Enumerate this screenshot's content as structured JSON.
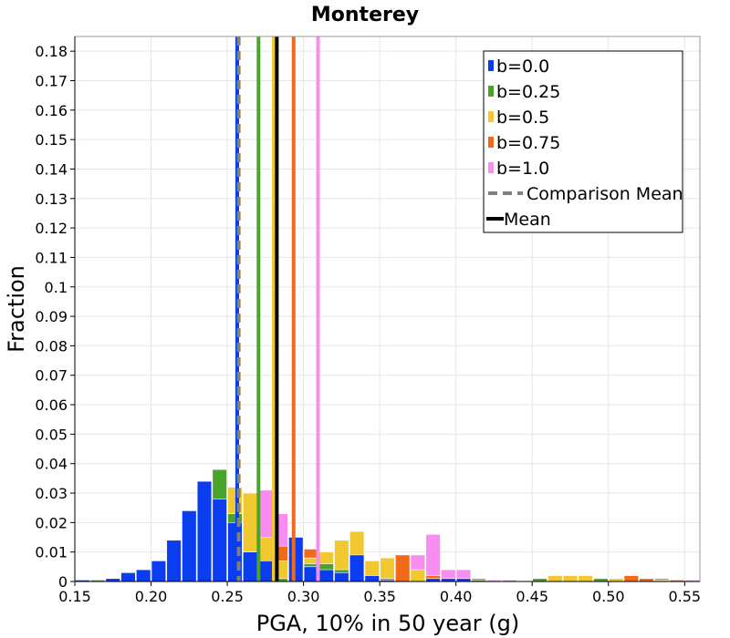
{
  "chart_data": {
    "type": "bar",
    "title": "Monterey",
    "xlabel": "PGA, 10% in 50 year (g)",
    "ylabel": "Fraction",
    "xlim": [
      0.15,
      0.56
    ],
    "ylim": [
      0,
      0.185
    ],
    "xticks": [
      "0.15",
      "0.20",
      "0.25",
      "0.30",
      "0.35",
      "0.40",
      "0.45",
      "0.50",
      "0.55"
    ],
    "yticks": [
      "0",
      "0.01",
      "0.02",
      "0.03",
      "0.04",
      "0.05",
      "0.06",
      "0.07",
      "0.08",
      "0.09",
      "0.1",
      "0.11",
      "0.12",
      "0.13",
      "0.14",
      "0.15",
      "0.16",
      "0.17",
      "0.18"
    ],
    "grid": true,
    "legend_position": "top-right",
    "bin_width": 0.01,
    "bin_starts": [
      0.15,
      0.16,
      0.17,
      0.18,
      0.19,
      0.2,
      0.21,
      0.22,
      0.23,
      0.24,
      0.25,
      0.26,
      0.27,
      0.28,
      0.29,
      0.3,
      0.31,
      0.32,
      0.33,
      0.34,
      0.35,
      0.36,
      0.37,
      0.38,
      0.39,
      0.4,
      0.41,
      0.42,
      0.43,
      0.44,
      0.45,
      0.46,
      0.47,
      0.48,
      0.49,
      0.5,
      0.51,
      0.52,
      0.53,
      0.54,
      0.55
    ],
    "series": [
      {
        "name": "b=0.0",
        "color": "#0a3cf0",
        "values": [
          0.0005,
          0,
          0.001,
          0.003,
          0.004,
          0.007,
          0.014,
          0.024,
          0.034,
          0.028,
          0.02,
          0.01,
          0.007,
          0,
          0.015,
          0.005,
          0.004,
          0.003,
          0.009,
          0.002,
          0.0005,
          0,
          0,
          0.001,
          0.001,
          0.001,
          0,
          0,
          0,
          0,
          0,
          0,
          0,
          0,
          0,
          0,
          0,
          0,
          0,
          0,
          0
        ]
      },
      {
        "name": "b=0.25",
        "color": "#4aa32a",
        "values": [
          0,
          0.0005,
          0.0005,
          0.0005,
          0.001,
          0.003,
          0.008,
          0.018,
          0.021,
          0.038,
          0.023,
          0.005,
          0.004,
          0.001,
          0.003,
          0.006,
          0.006,
          0.004,
          0.003,
          0.001,
          0.001,
          0,
          0,
          0,
          0.0005,
          0.0005,
          0.0005,
          0,
          0,
          0,
          0.001,
          0,
          0,
          0,
          0.001,
          0,
          0,
          0,
          0,
          0,
          0
        ]
      },
      {
        "name": "b=0.5",
        "color": "#f1c830",
        "values": [
          0,
          0,
          0,
          0.0005,
          0.0005,
          0.002,
          0.003,
          0.009,
          0.019,
          0.033,
          0.032,
          0.03,
          0.015,
          0.007,
          0.008,
          0.008,
          0.01,
          0.014,
          0.017,
          0.007,
          0.008,
          0,
          0.004,
          0,
          0,
          0.001,
          0,
          0,
          0,
          0,
          0,
          0.002,
          0.002,
          0.002,
          0,
          0.001,
          0,
          0,
          0.0005,
          0,
          0
        ]
      },
      {
        "name": "b=0.75",
        "color": "#f06a1a",
        "values": [
          0,
          0,
          0,
          0,
          0.0005,
          0.0005,
          0.001,
          0.0005,
          0.01,
          0.013,
          0.022,
          0.016,
          0.012,
          0.012,
          0.006,
          0.011,
          0.005,
          0.012,
          0.005,
          0.007,
          0.008,
          0.009,
          0.003,
          0.002,
          0.001,
          0.0005,
          0.001,
          0,
          0,
          0,
          0,
          0,
          0.001,
          0,
          0.001,
          0,
          0.002,
          0.001,
          0.001,
          0.0005,
          0
        ]
      },
      {
        "name": "b=1.0",
        "color": "#f98cf0",
        "values": [
          0,
          0,
          0,
          0,
          0,
          0,
          0,
          0.0005,
          0.003,
          0.013,
          0.018,
          0.008,
          0.031,
          0.023,
          0.007,
          0.005,
          0.009,
          0.004,
          0.002,
          0.003,
          0.001,
          0.008,
          0.009,
          0.016,
          0.004,
          0.004,
          0.001,
          0.0005,
          0.0005,
          0,
          0,
          0,
          0,
          0,
          0,
          0,
          0,
          0.001,
          0,
          0,
          0.0005
        ]
      }
    ],
    "vertical_lines": [
      {
        "name": "b=0.0",
        "x": 0.2565,
        "color": "#0a3cf0",
        "style": "solid"
      },
      {
        "name": "b=0.25",
        "x": 0.2705,
        "color": "#4aa32a",
        "style": "solid"
      },
      {
        "name": "b=0.5",
        "x": 0.2805,
        "color": "#f1c830",
        "style": "solid"
      },
      {
        "name": "b=0.75",
        "x": 0.2935,
        "color": "#f06a1a",
        "style": "solid"
      },
      {
        "name": "b=1.0",
        "x": 0.3095,
        "color": "#f98cf0",
        "style": "solid"
      },
      {
        "name": "Comparison Mean",
        "x": 0.2575,
        "color": "#808080",
        "style": "dashed"
      },
      {
        "name": "Mean",
        "x": 0.2825,
        "color": "#000000",
        "style": "solid"
      }
    ],
    "legend": [
      {
        "label": "b=0.0",
        "color": "#0a3cf0",
        "kind": "patch"
      },
      {
        "label": "b=0.25",
        "color": "#4aa32a",
        "kind": "patch"
      },
      {
        "label": "b=0.5",
        "color": "#f1c830",
        "kind": "patch"
      },
      {
        "label": "b=0.75",
        "color": "#f06a1a",
        "kind": "patch"
      },
      {
        "label": "b=1.0",
        "color": "#f98cf0",
        "kind": "patch"
      },
      {
        "label": "Comparison Mean",
        "color": "#808080",
        "kind": "dashed"
      },
      {
        "label": "Mean",
        "color": "#000000",
        "kind": "line"
      }
    ]
  }
}
